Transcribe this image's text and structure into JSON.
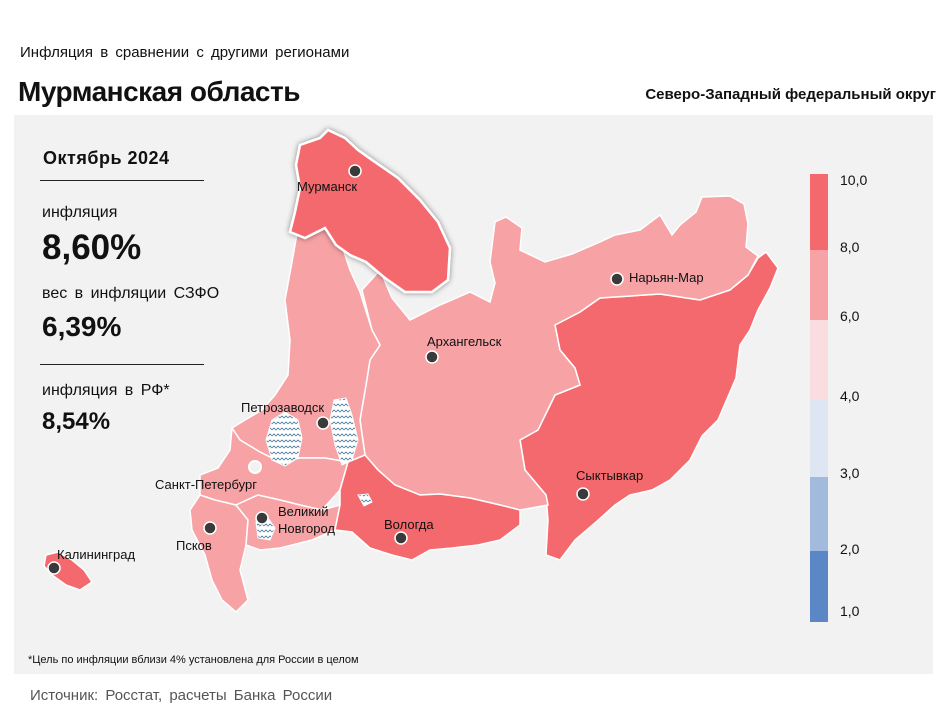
{
  "header": {
    "subtitle": "Инфляция в сравнении с другими регионами",
    "title": "Мурманская область",
    "district": "Северо-Западный федеральный округ"
  },
  "stats": {
    "period": "Октябрь 2024",
    "inflation_label": "инфляция",
    "inflation_value": "8,60%",
    "weight_label": "вес в инфляции СЗФО",
    "weight_value": "6,39%",
    "rf_label": "инфляция в РФ*",
    "rf_value": "8,54%"
  },
  "cities": {
    "murmansk": "Мурманск",
    "naryan_mar": "Нарьян-Мар",
    "arkhangelsk": "Архангельск",
    "petrozavodsk": "Петрозаводск",
    "spb": "Санкт-Петербург",
    "syktyvkar": "Сыктывкар",
    "velikiy_1": "Великий",
    "velikiy_2": "Новгород",
    "pskov": "Псков",
    "vologda": "Вологда",
    "kaliningrad": "Калининград"
  },
  "legend": {
    "ticks": [
      "10,0",
      "8,0",
      "6,0",
      "4,0",
      "3,0",
      "2,0",
      "1,0"
    ],
    "colors": {
      "c8_10": "#f4696d",
      "c6_8": "#f7a3a6",
      "c4_6": "#f9dde0",
      "c3_4": "#dfe6f3",
      "c2_3": "#a2bbdd",
      "c1_2": "#5b87c6"
    }
  },
  "footnote": "*Цель по инфляции вблизи 4% установлена для России в целом",
  "source": "Источник: Росстат, расчеты Банка России"
}
